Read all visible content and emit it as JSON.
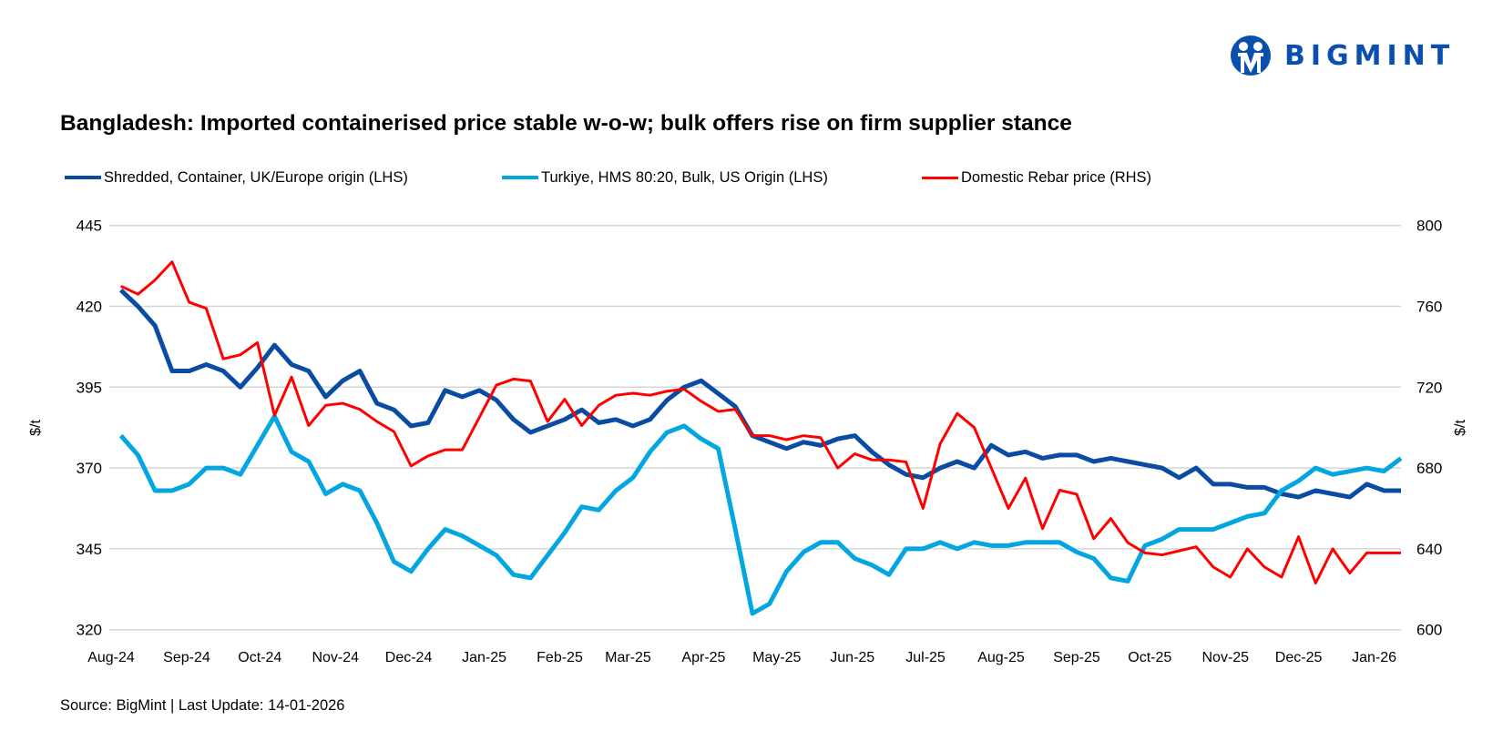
{
  "logo": {
    "text": "BIGMINT",
    "color": "#0a4fae"
  },
  "title": "Bangladesh: Imported containerised price stable w-o-w; bulk offers rise on firm supplier stance",
  "source": "Source: BigMint | Last Update: 14-01-2026",
  "chart_data": {
    "type": "line",
    "title": "Bangladesh: Imported containerised price stable w-o-w; bulk offers rise on firm supplier stance",
    "ylabel_left": "$/t",
    "ylabel_right": "$/t",
    "ylim_left": [
      320,
      445
    ],
    "ylim_right": [
      600,
      800
    ],
    "yticks_left": [
      445,
      420,
      395,
      370,
      345,
      320
    ],
    "yticks_right": [
      800,
      760,
      720,
      680,
      640,
      600
    ],
    "x_range": [
      "2024-08-01",
      "2026-01-12"
    ],
    "x_ticks": [
      {
        "label": "Aug-24",
        "date": "2024-08-01"
      },
      {
        "label": "Sep-24",
        "date": "2024-09-01"
      },
      {
        "label": "Oct-24",
        "date": "2024-10-01"
      },
      {
        "label": "Nov-24",
        "date": "2024-11-01"
      },
      {
        "label": "Dec-24",
        "date": "2024-12-01"
      },
      {
        "label": "Jan-25",
        "date": "2025-01-01"
      },
      {
        "label": "Feb-25",
        "date": "2025-02-01"
      },
      {
        "label": "Mar-25",
        "date": "2025-03-01"
      },
      {
        "label": "Apr-25",
        "date": "2025-04-01"
      },
      {
        "label": "May-25",
        "date": "2025-05-01"
      },
      {
        "label": "Jun-25",
        "date": "2025-06-01"
      },
      {
        "label": "Jul-25",
        "date": "2025-07-01"
      },
      {
        "label": "Aug-25",
        "date": "2025-08-01"
      },
      {
        "label": "Sep-25",
        "date": "2025-09-01"
      },
      {
        "label": "Oct-25",
        "date": "2025-10-01"
      },
      {
        "label": "Nov-25",
        "date": "2025-11-01"
      },
      {
        "label": "Dec-25",
        "date": "2025-12-01"
      },
      {
        "label": "Jan-26",
        "date": "2026-01-01"
      }
    ],
    "grid": true,
    "legend_position": "top",
    "x": [
      "2024-08-05",
      "2024-08-12",
      "2024-08-19",
      "2024-08-26",
      "2024-09-02",
      "2024-09-09",
      "2024-09-16",
      "2024-09-23",
      "2024-09-30",
      "2024-10-07",
      "2024-10-14",
      "2024-10-21",
      "2024-10-28",
      "2024-11-04",
      "2024-11-11",
      "2024-11-18",
      "2024-11-25",
      "2024-12-02",
      "2024-12-09",
      "2024-12-16",
      "2024-12-23",
      "2024-12-30",
      "2025-01-06",
      "2025-01-13",
      "2025-01-20",
      "2025-01-27",
      "2025-02-03",
      "2025-02-10",
      "2025-02-17",
      "2025-02-24",
      "2025-03-03",
      "2025-03-10",
      "2025-03-17",
      "2025-03-24",
      "2025-03-31",
      "2025-04-07",
      "2025-04-14",
      "2025-04-21",
      "2025-04-28",
      "2025-05-05",
      "2025-05-12",
      "2025-05-19",
      "2025-05-26",
      "2025-06-02",
      "2025-06-09",
      "2025-06-16",
      "2025-06-23",
      "2025-06-30",
      "2025-07-07",
      "2025-07-14",
      "2025-07-21",
      "2025-07-28",
      "2025-08-04",
      "2025-08-11",
      "2025-08-18",
      "2025-08-25",
      "2025-09-01",
      "2025-09-08",
      "2025-09-15",
      "2025-09-22",
      "2025-09-29",
      "2025-10-06",
      "2025-10-13",
      "2025-10-20",
      "2025-10-27",
      "2025-11-03",
      "2025-11-10",
      "2025-11-17",
      "2025-11-24",
      "2025-12-01",
      "2025-12-08",
      "2025-12-15",
      "2025-12-22",
      "2025-12-29",
      "2026-01-05",
      "2026-01-12"
    ],
    "series": [
      {
        "name": "Shredded, Container, UK/Europe origin (LHS)",
        "axis": "left",
        "color": "#0a4ca3",
        "values": [
          425,
          420,
          414,
          400,
          400,
          402,
          400,
          395,
          401,
          408,
          402,
          400,
          392,
          397,
          400,
          390,
          388,
          383,
          384,
          394,
          392,
          394,
          391,
          385,
          381,
          383,
          385,
          388,
          384,
          385,
          383,
          385,
          391,
          395,
          397,
          393,
          389,
          380,
          378,
          376,
          378,
          377,
          379,
          380,
          375,
          371,
          368,
          367,
          370,
          372,
          370,
          377,
          374,
          375,
          373,
          374,
          374,
          372,
          373,
          372,
          371,
          370,
          367,
          370,
          365,
          365,
          364,
          364,
          362,
          361,
          363,
          362,
          361,
          365,
          363,
          363
        ]
      },
      {
        "name": "Turkiye, HMS 80:20, Bulk, US Origin (LHS)",
        "axis": "left",
        "color": "#04a6e0",
        "values": [
          380,
          374,
          363,
          363,
          365,
          370,
          370,
          368,
          377,
          386,
          375,
          372,
          362,
          365,
          363,
          353,
          341,
          338,
          345,
          351,
          349,
          346,
          343,
          337,
          336,
          343,
          350,
          358,
          357,
          363,
          367,
          375,
          381,
          383,
          379,
          376,
          351,
          325,
          328,
          338,
          344,
          347,
          347,
          342,
          340,
          337,
          345,
          345,
          347,
          345,
          347,
          346,
          346,
          347,
          347,
          347,
          344,
          342,
          336,
          335,
          346,
          348,
          351,
          351,
          351,
          353,
          355,
          356,
          363,
          366,
          370,
          368,
          369,
          370,
          369,
          373
        ]
      },
      {
        "name": "Domestic Rebar price (RHS)",
        "axis": "right",
        "color": "#ff0000",
        "values": [
          770,
          766,
          773,
          782,
          762,
          759,
          734,
          736,
          742,
          706,
          725,
          701,
          711,
          712,
          709,
          703,
          698,
          681,
          686,
          689,
          689,
          705,
          721,
          724,
          723,
          703,
          714,
          701,
          711,
          716,
          717,
          716,
          718,
          719,
          713,
          708,
          709,
          696,
          696,
          694,
          696,
          695,
          680,
          687,
          684,
          684,
          683,
          660,
          692,
          707,
          700,
          680,
          660,
          675,
          650,
          669,
          667,
          645,
          655,
          643,
          638,
          637,
          639,
          641,
          631,
          626,
          640,
          631,
          626,
          646,
          623,
          640,
          628,
          638,
          638,
          638
        ]
      }
    ]
  }
}
